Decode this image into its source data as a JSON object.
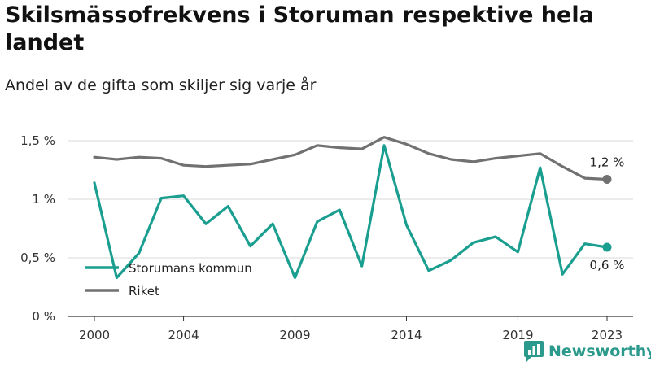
{
  "title": "Skilsmässofrekvens i Storuman respektive hela landet",
  "subtitle": "Andel av de gifta som skiljer sig varje år",
  "brand": "Newsworthy",
  "chart_data": {
    "type": "line",
    "x": [
      2000,
      2001,
      2002,
      2003,
      2004,
      2005,
      2006,
      2007,
      2008,
      2009,
      2010,
      2011,
      2012,
      2013,
      2014,
      2015,
      2016,
      2017,
      2018,
      2019,
      2020,
      2021,
      2022,
      2023
    ],
    "x_ticks": [
      "2000",
      "2004",
      "2009",
      "2014",
      "2019",
      "2023"
    ],
    "y_ticks": [
      "0 %",
      "0,5 %",
      "1 %",
      "1,5 %"
    ],
    "ylim": [
      0,
      1.5
    ],
    "grid": true,
    "legend_position": "bottom-left",
    "series": [
      {
        "name": "Storumans kommun",
        "color": "#1a9e8f",
        "values": [
          1.14,
          0.33,
          0.54,
          1.01,
          1.03,
          0.79,
          0.94,
          0.6,
          0.79,
          0.33,
          0.81,
          0.91,
          0.43,
          1.46,
          0.78,
          0.39,
          0.48,
          0.63,
          0.68,
          0.55,
          1.27,
          0.36,
          0.62,
          0.59
        ],
        "end_label": "0,6 %"
      },
      {
        "name": "Riket",
        "color": "#717171",
        "values": [
          1.36,
          1.34,
          1.36,
          1.35,
          1.29,
          1.28,
          1.29,
          1.3,
          1.34,
          1.38,
          1.46,
          1.44,
          1.43,
          1.53,
          1.47,
          1.39,
          1.34,
          1.32,
          1.35,
          1.37,
          1.39,
          1.28,
          1.18,
          1.17
        ],
        "end_label": "1,2 %"
      }
    ]
  }
}
